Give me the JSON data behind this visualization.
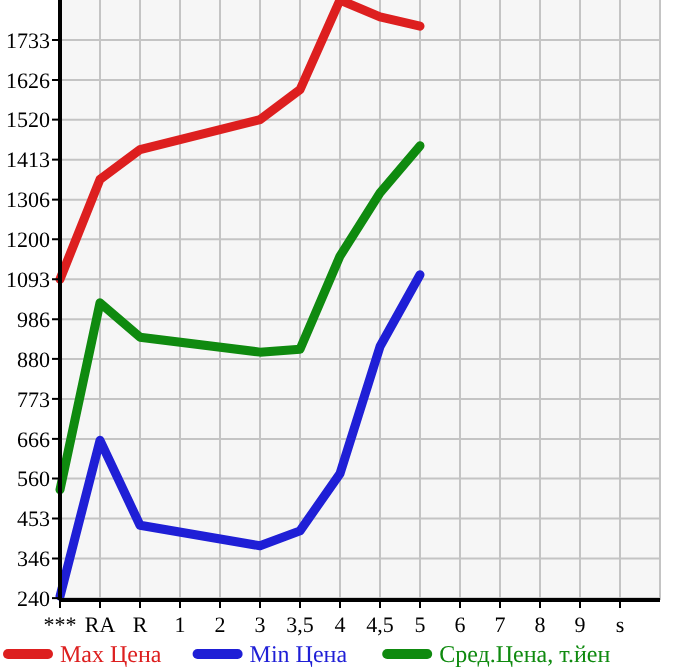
{
  "chart_data": {
    "type": "line",
    "categories": [
      "***",
      "RA",
      "R",
      "1",
      "2",
      "3",
      "3,5",
      "4",
      "4,5",
      "5",
      "6",
      "7",
      "8",
      "9",
      "s"
    ],
    "series": [
      {
        "name": "Max Цена",
        "color": "#dd1f1f",
        "values": [
          1093,
          1360,
          1440,
          null,
          null,
          1520,
          1600,
          1840,
          1795,
          1770,
          null,
          null,
          null,
          null,
          null
        ]
      },
      {
        "name": "Min Цена",
        "color": "#1f1fd6",
        "values": [
          245,
          662,
          435,
          null,
          null,
          380,
          420,
          573,
          913,
          1105,
          null,
          null,
          null,
          null,
          null
        ]
      },
      {
        "name": "Сред.Цена, т.йен",
        "color": "#0f8a0f",
        "values": [
          530,
          1030,
          938,
          null,
          null,
          898,
          906,
          1155,
          1324,
          1450,
          null,
          null,
          null,
          null,
          null
        ]
      }
    ],
    "ylim": [
      235,
      1840
    ],
    "yticks": [
      240,
      346,
      453,
      560,
      666,
      773,
      880,
      986,
      1093,
      1200,
      1306,
      1413,
      1520,
      1626,
      1733
    ],
    "grid": true,
    "legend": "bottom",
    "marker": "none",
    "line_style": "solid"
  }
}
